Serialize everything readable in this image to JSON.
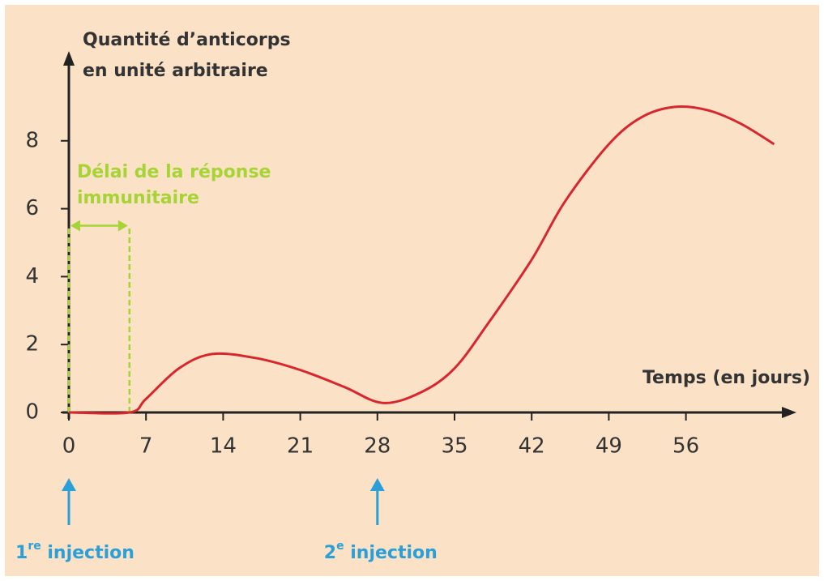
{
  "chart_data": {
    "type": "line",
    "y_label": [
      "Quantité d’anticorps",
      "en unité arbitraire"
    ],
    "x_label": "Temps (en jours)",
    "x": [
      0,
      5.5,
      7,
      10,
      13,
      17,
      21,
      25,
      28.5,
      32,
      35,
      38,
      42,
      45,
      49,
      52,
      55,
      58,
      61,
      64
    ],
    "series": [
      {
        "color": "#d8262e",
        "values": [
          0,
          0,
          0.4,
          1.3,
          1.72,
          1.6,
          1.25,
          0.75,
          0.28,
          0.6,
          1.3,
          2.6,
          4.5,
          6.2,
          7.9,
          8.7,
          9.0,
          8.9,
          8.5,
          7.9
        ]
      }
    ],
    "xlim": [
      0,
      65
    ],
    "ylim": [
      0,
      10.5
    ],
    "xticks": [
      0,
      7,
      14,
      21,
      28,
      35,
      42,
      49,
      56
    ],
    "yticks": [
      0,
      2,
      4,
      6,
      8
    ],
    "delay": {
      "text": [
        "Délai de la réponse",
        "immunitaire"
      ],
      "x": [
        0,
        5.5
      ],
      "y": 5.5,
      "color": "#a6d436"
    },
    "injections": [
      {
        "number": "1",
        "sup": "re",
        "text": " injection",
        "x": 0
      },
      {
        "number": "2",
        "sup": "e",
        "text": " injection",
        "x": 28
      }
    ],
    "injection_color": "#2a9fd8"
  }
}
